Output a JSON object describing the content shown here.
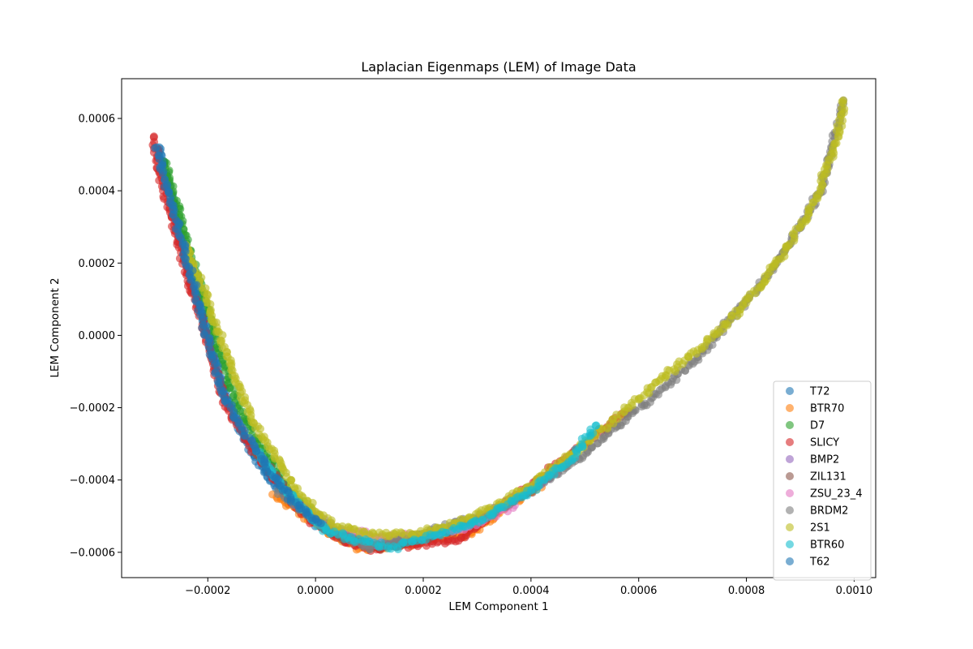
{
  "chart_data": {
    "type": "scatter",
    "title": "Laplacian Eigenmaps (LEM) of Image Data",
    "xlabel": "LEM Component 1",
    "ylabel": "LEM Component 2",
    "xlim": [
      -0.00036,
      0.00104
    ],
    "ylim": [
      -0.00067,
      0.00071
    ],
    "xticks": [
      -0.0002,
      0.0,
      0.0002,
      0.0004,
      0.0006,
      0.0008,
      0.001
    ],
    "xtick_labels": [
      "−0.0002",
      "0.0000",
      "0.0002",
      "0.0004",
      "0.0006",
      "0.0008",
      "0.0010"
    ],
    "yticks": [
      -0.0006,
      -0.0004,
      -0.0002,
      0.0,
      0.0002,
      0.0004,
      0.0006
    ],
    "ytick_labels": [
      "−0.0006",
      "−0.0004",
      "−0.0002",
      "0.0000",
      "0.0002",
      "0.0004",
      "0.0006"
    ],
    "grid": false,
    "legend_position": "bottom-right",
    "series": [
      {
        "name": "T72",
        "color": "#1f77b4",
        "points": [
          [
            -0.00029,
            0.00052
          ],
          [
            -0.000275,
            0.00042
          ],
          [
            -0.00026,
            0.00033
          ],
          [
            -0.000245,
            0.00024
          ],
          [
            -0.00023,
            0.00016
          ],
          [
            -0.000215,
            8e-05
          ],
          [
            -0.0002,
            0.0
          ],
          [
            -0.00018,
            -0.0001
          ],
          [
            -0.00016,
            -0.00019
          ],
          [
            -0.00013,
            -0.00029
          ],
          [
            -9e-05,
            -0.00039
          ],
          [
            -4e-05,
            -0.00047
          ],
          [
            1e-05,
            -0.00053
          ]
        ]
      },
      {
        "name": "BTR70",
        "color": "#ff7f0e",
        "points": [
          [
            -8e-05,
            -0.00044
          ],
          [
            2e-05,
            -0.00054
          ],
          [
            8e-05,
            -0.00059
          ],
          [
            0.00016,
            -0.00058
          ],
          [
            0.00024,
            -0.00056
          ],
          [
            0.00029,
            -0.00055
          ],
          [
            0.00035,
            -0.00048
          ],
          [
            0.00042,
            -0.00041
          ]
        ]
      },
      {
        "name": "D7",
        "color": "#2ca02c",
        "points": [
          [
            -0.00028,
            0.00048
          ],
          [
            -0.00024,
            0.00026
          ],
          [
            -0.00019,
            1e-05
          ],
          [
            -0.00014,
            -0.00021
          ],
          [
            -5e-05,
            -0.00043
          ],
          [
            4e-05,
            -0.00055
          ],
          [
            0.00012,
            -0.00059
          ]
        ]
      },
      {
        "name": "SLICY",
        "color": "#d62728",
        "points": [
          [
            -0.0003,
            0.00055
          ],
          [
            -0.00029,
            0.00045
          ],
          [
            -0.00027,
            0.00034
          ],
          [
            -0.00025,
            0.00023
          ],
          [
            -0.00023,
            0.00013
          ],
          [
            -0.00021,
            3e-05
          ],
          [
            -0.00019,
            -8e-05
          ],
          [
            -0.00017,
            -0.00018
          ],
          [
            -0.00014,
            -0.00026
          ],
          [
            -0.0001,
            -0.00035
          ],
          [
            -6e-05,
            -0.00043
          ],
          [
            -1e-05,
            -0.00051
          ],
          [
            4e-05,
            -0.00056
          ],
          [
            0.0001,
            -0.00059
          ],
          [
            0.00018,
            -0.00058
          ],
          [
            0.00026,
            -0.00057
          ],
          [
            0.00058,
            -0.00021
          ]
        ]
      },
      {
        "name": "BMP2",
        "color": "#9467bd",
        "points": [
          [
            -4e-05,
            -0.00046
          ],
          [
            3e-05,
            -0.00053
          ],
          [
            0.0001,
            -0.00058
          ],
          [
            0.00019,
            -0.00056
          ],
          [
            0.00027,
            -0.00053
          ],
          [
            0.00036,
            -0.00046
          ],
          [
            0.00045,
            -0.00038
          ]
        ]
      },
      {
        "name": "ZIL131",
        "color": "#8c564b",
        "points": [
          [
            -0.00011,
            -0.00032
          ],
          [
            -2e-05,
            -0.00049
          ],
          [
            5e-05,
            -0.00056
          ],
          [
            0.00013,
            -0.00058
          ],
          [
            0.00021,
            -0.00056
          ],
          [
            0.00031,
            -0.00051
          ],
          [
            0.00041,
            -0.00042
          ]
        ]
      },
      {
        "name": "ZSU_23_4",
        "color": "#e377c2",
        "points": [
          [
            6e-05,
            -0.00054
          ],
          [
            0.00013,
            -0.00056
          ],
          [
            0.0002,
            -0.00055
          ],
          [
            0.00028,
            -0.00053
          ],
          [
            0.00037,
            -0.00047
          ]
        ]
      },
      {
        "name": "BRDM2",
        "color": "#7f7f7f",
        "points": [
          [
            -7e-05,
            -0.00043
          ],
          [
            2e-05,
            -0.00053
          ],
          [
            0.0001,
            -0.00059
          ],
          [
            0.00019,
            -0.00055
          ],
          [
            0.00033,
            -0.00049
          ],
          [
            0.00047,
            -0.00036
          ],
          [
            0.00057,
            -0.00024
          ],
          [
            0.00065,
            -0.00014
          ],
          [
            0.00071,
            -6e-05
          ],
          [
            0.00075,
            1e-05
          ],
          [
            0.00079,
            8e-05
          ],
          [
            0.00082,
            0.00013
          ],
          [
            0.00085,
            0.00019
          ],
          [
            0.00088,
            0.00025
          ],
          [
            0.00094,
            0.00041
          ],
          [
            0.00098,
            0.00065
          ]
        ]
      },
      {
        "name": "2S1",
        "color": "#bcbd22",
        "points": [
          [
            -0.00024,
            0.00025
          ],
          [
            -0.00012,
            -0.00023
          ],
          [
            -3e-05,
            -0.00044
          ],
          [
            4e-05,
            -0.00053
          ],
          [
            0.0001,
            -0.00055
          ],
          [
            0.00018,
            -0.00055
          ],
          [
            0.00026,
            -0.00052
          ],
          [
            0.00034,
            -0.00047
          ],
          [
            0.00042,
            -0.00039
          ],
          [
            0.0005,
            -0.0003
          ],
          [
            0.00058,
            -0.0002
          ],
          [
            0.00065,
            -0.00011
          ],
          [
            0.00071,
            -4e-05
          ],
          [
            0.00076,
            3e-05
          ],
          [
            0.0008,
            9e-05
          ],
          [
            0.00084,
            0.00017
          ],
          [
            0.00087,
            0.00023
          ],
          [
            0.0009,
            0.0003
          ],
          [
            0.00093,
            0.00038
          ],
          [
            0.00095,
            0.00047
          ],
          [
            0.00097,
            0.00055
          ],
          [
            0.00098,
            0.00065
          ]
        ]
      },
      {
        "name": "BTR60",
        "color": "#17becf",
        "points": [
          [
            -0.00011,
            -0.00032
          ],
          [
            -7e-05,
            -0.0004
          ],
          [
            -4e-05,
            -0.00045
          ],
          [
            -1e-05,
            -0.0005
          ],
          [
            2e-05,
            -0.00054
          ],
          [
            6e-05,
            -0.00056
          ],
          [
            0.0001,
            -0.00057
          ],
          [
            0.00014,
            -0.00059
          ],
          [
            0.00018,
            -0.00057
          ],
          [
            0.00023,
            -0.00055
          ],
          [
            0.00031,
            -0.00051
          ],
          [
            0.0004,
            -0.00043
          ],
          [
            0.00047,
            -0.00035
          ],
          [
            0.00052,
            -0.00025
          ]
        ]
      },
      {
        "name": "T62",
        "color": "#1f77b4",
        "points": [
          [
            -0.000295,
            0.00052
          ],
          [
            -0.00028,
            0.00043
          ],
          [
            -0.000265,
            0.00035
          ],
          [
            -0.00025,
            0.00027
          ],
          [
            -0.000235,
            0.00019
          ],
          [
            -0.00022,
            0.00011
          ],
          [
            -0.00021,
            4e-05
          ],
          [
            -0.000195,
            -4e-05
          ],
          [
            -0.00017,
            -0.00017
          ],
          [
            -0.00014,
            -0.00025
          ],
          [
            -0.00011,
            -0.00032
          ],
          [
            -7e-05,
            -0.00041
          ],
          [
            -3e-05,
            -0.00048
          ],
          [
            1e-05,
            -0.00052
          ]
        ]
      }
    ]
  }
}
